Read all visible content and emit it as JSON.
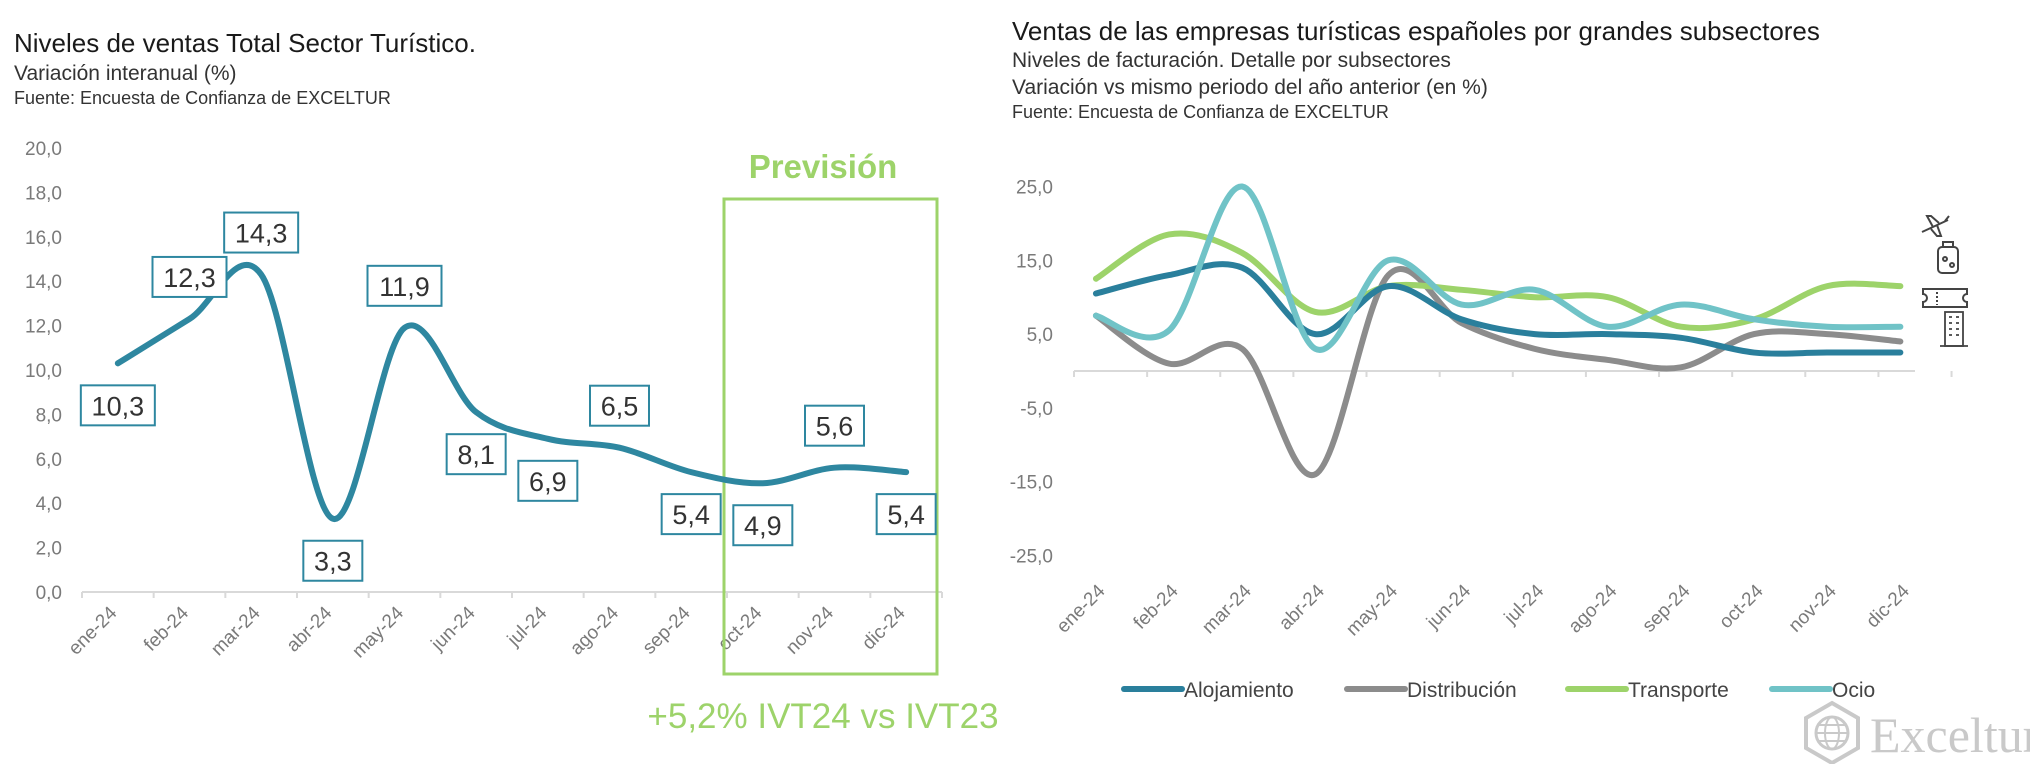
{
  "colors": {
    "main_line": "#2e87a0",
    "forecast": "#9dd36a",
    "alojamiento": "#2a7f9c",
    "distribucion": "#8c8c8c",
    "transporte": "#9dd36a",
    "ocio": "#70c3c7",
    "axis": "#d9d9d9",
    "tick_text": "#7a7a7a"
  },
  "left_panel": {
    "title": "Niveles de ventas Total Sector Turístico.",
    "subtitle": "Variación interanual (%)",
    "source": "Fuente: Encuesta de Confianza de EXCELTUR",
    "forecast_label": "Previsión",
    "forecast_note": "+5,2% IVT24 vs IVT23"
  },
  "right_panel": {
    "title": "Ventas de las empresas turísticas españoles por grandes subsectores",
    "subtitle1": "Niveles de facturación. Detalle por subsectores",
    "subtitle2": "Variación vs mismo periodo del año anterior (en %)",
    "source": "Fuente: Encuesta de Confianza de EXCELTUR",
    "icons": [
      "airplane-icon",
      "luggage-icon",
      "ticket-icon",
      "hotel-building-icon"
    ]
  },
  "brand": {
    "name": "Exceltur",
    "icon": "globe-logo-icon"
  },
  "chart_data": [
    {
      "type": "line",
      "categories": [
        "ene-24",
        "feb-24",
        "mar-24",
        "abr-24",
        "may-24",
        "jun-24",
        "jul-24",
        "ago-24",
        "sep-24",
        "oct-24",
        "nov-24",
        "dic-24"
      ],
      "values": [
        10.3,
        12.3,
        14.3,
        3.3,
        11.9,
        8.1,
        6.9,
        6.5,
        5.4,
        4.9,
        5.6,
        5.4
      ],
      "data_labels": [
        "10,3",
        "12,3",
        "14,3",
        "3,3",
        "11,9",
        "8,1",
        "6,9",
        "6,5",
        "5,4",
        "4,9",
        "5,6",
        "5,4"
      ],
      "ylim": [
        0,
        20
      ],
      "yticks": [
        "0,0",
        "2,0",
        "4,0",
        "6,0",
        "8,0",
        "10,0",
        "12,0",
        "14,0",
        "16,0",
        "18,0",
        "20,0"
      ],
      "forecast_range": [
        "oct-24",
        "dic-24"
      ],
      "smooth": true
    },
    {
      "type": "line",
      "categories": [
        "ene-24",
        "feb-24",
        "mar-24",
        "abr-24",
        "may-24",
        "jun-24",
        "jul-24",
        "ago-24",
        "sep-24",
        "oct-24",
        "nov-24",
        "dic-24"
      ],
      "ylim": [
        -25,
        25
      ],
      "yticks": [
        "-25,0",
        "-15,0",
        "-5,0",
        "5,0",
        "15,0",
        "25,0"
      ],
      "legend_position": "bottom",
      "smooth": true,
      "series": [
        {
          "name": "Alojamiento",
          "values": [
            10.5,
            13.0,
            14.0,
            5.0,
            11.5,
            7.0,
            5.0,
            5.0,
            4.5,
            2.5,
            2.5,
            2.5
          ]
        },
        {
          "name": "Distribución",
          "values": [
            7.5,
            1.0,
            3.0,
            -14.0,
            13.0,
            6.5,
            3.0,
            1.5,
            0.5,
            5.0,
            5.0,
            4.0
          ]
        },
        {
          "name": "Transporte",
          "values": [
            12.5,
            18.5,
            16.0,
            8.0,
            11.5,
            11.0,
            10.0,
            10.0,
            6.0,
            7.0,
            11.5,
            11.5
          ]
        },
        {
          "name": "Ocio",
          "values": [
            7.5,
            5.5,
            25.0,
            3.0,
            15.0,
            9.0,
            11.0,
            6.0,
            9.0,
            7.0,
            6.0,
            6.0
          ]
        }
      ]
    }
  ]
}
